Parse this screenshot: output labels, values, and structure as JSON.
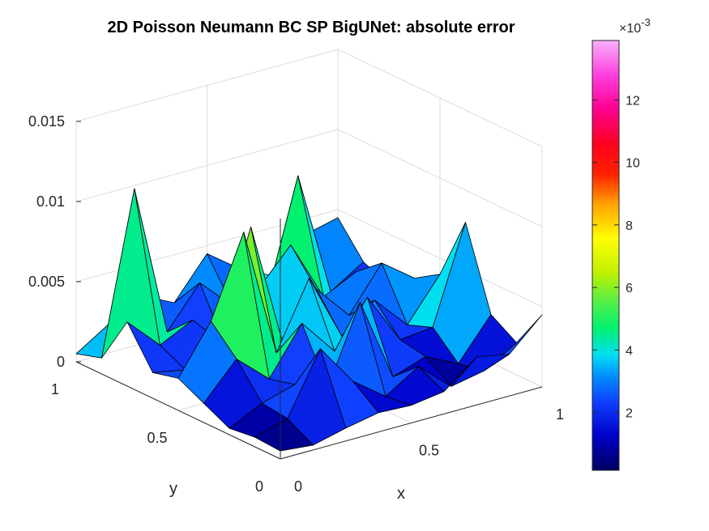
{
  "chart_data": {
    "type": "surface",
    "title": "2D Poisson Neumann BC SP BigUNet: absolute error",
    "xlabel": "x",
    "ylabel": "y",
    "zlabel": "",
    "xlim": [
      0,
      1
    ],
    "ylim": [
      0,
      1
    ],
    "zlim": [
      0,
      0.015
    ],
    "x_ticks": [
      "0",
      "0.5",
      "1"
    ],
    "y_ticks": [
      "0",
      "0.5",
      "1"
    ],
    "z_ticks": [
      "0",
      "0.005",
      "0.01",
      "0.015"
    ],
    "colormap": "hsv-like (navy to blue to cyan to green to yellow to orange to red to magenta to pink)",
    "grid": true,
    "colorbar": {
      "placement": "right",
      "exponent_label": "×10",
      "exponent_power": "-3",
      "ticks": [
        "2",
        "4",
        "6",
        "8",
        "10",
        "12"
      ],
      "tick_values": [
        2,
        4,
        6,
        8,
        10,
        12
      ],
      "range": [
        0.15,
        13.9
      ]
    },
    "grid_nodes": 9,
    "z_values": [
      [
        0.0005,
        0.0003,
        0.0008,
        0.0012,
        0.0011,
        0.0014,
        0.003,
        0.0026,
        0.0045
      ],
      [
        0.0006,
        0.0012,
        0.005,
        0.0024,
        0.0009,
        0.0022,
        0.0004,
        0.0008,
        0.002
      ],
      [
        0.0004,
        0.0014,
        0.002,
        0.0012,
        0.006,
        0.0008,
        0.0015,
        0.0005,
        0.003
      ],
      [
        0.0012,
        0.0034,
        0.0016,
        0.0045,
        0.0022,
        0.005,
        0.0018,
        0.002,
        0.008
      ],
      [
        0.002,
        0.005,
        0.01,
        0.0019,
        0.006,
        0.0018,
        0.0035,
        0.0014,
        0.004
      ],
      [
        0.0016,
        0.0012,
        0.0025,
        0.009,
        0.001,
        0.004,
        0.0018,
        0.0045,
        0.003
      ],
      [
        0.004,
        0.002,
        0.003,
        0.0008,
        0.0038,
        0.006,
        0.0022,
        0.0032,
        0.0018
      ],
      [
        0.001,
        0.011,
        0.0015,
        0.004,
        0.002,
        0.0016,
        0.009,
        0.0012,
        0.0025
      ],
      [
        0.0005,
        0.0018,
        0.003,
        0.002,
        0.0045,
        0.003,
        0.002,
        0.004,
        0.0045
      ]
    ]
  }
}
